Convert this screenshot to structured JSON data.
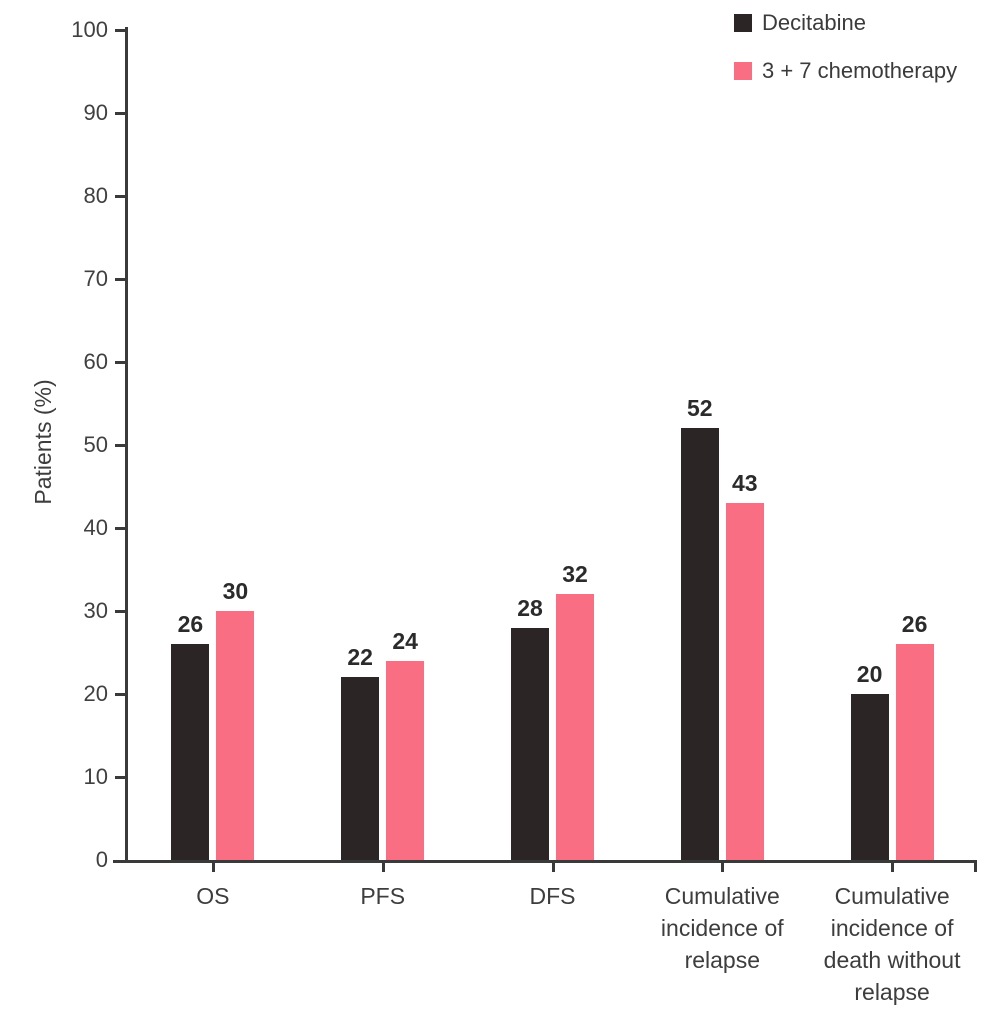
{
  "chart_data": {
    "type": "bar",
    "title": "",
    "xlabel": "",
    "ylabel": "Patients (%)",
    "ylim": [
      0,
      100
    ],
    "yticks": [
      0,
      10,
      20,
      30,
      40,
      50,
      60,
      70,
      80,
      90,
      100
    ],
    "grid": false,
    "value_labels": true,
    "legend_position": "top-right",
    "categories": [
      "OS",
      "PFS",
      "DFS",
      "Cumulative incidence of relapse",
      "Cumulative incidence of death without relapse"
    ],
    "category_display": [
      "OS",
      "PFS",
      "DFS",
      "Cumulative\nincidence of\nrelapse",
      "Cumulative\nincidence of\ndeath without\nrelapse"
    ],
    "series": [
      {
        "name": "Decitabine",
        "color": "#2b2526",
        "values": [
          26,
          22,
          28,
          52,
          20
        ]
      },
      {
        "name": "3 + 7 chemotherapy",
        "color": "#fa6e83",
        "values": [
          30,
          24,
          32,
          43,
          26
        ]
      }
    ]
  },
  "colors": {
    "axis": "#3a3a3a",
    "tick_text": "#404040",
    "category_text": "#3d3d3d",
    "value_text": "#2b2b2b",
    "background": "#ffffff"
  }
}
